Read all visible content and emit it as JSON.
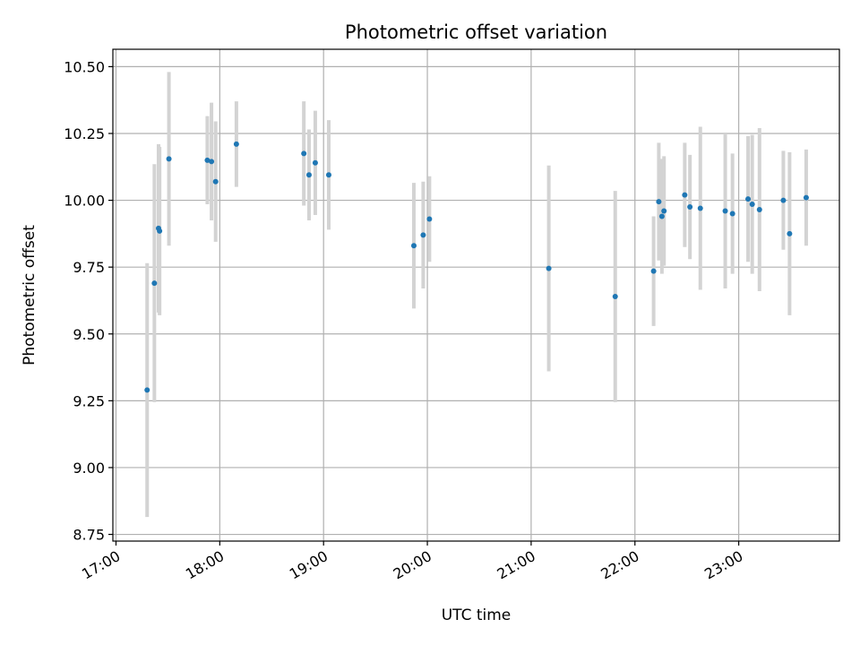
{
  "chart_data": {
    "type": "scatter",
    "title": "Photometric offset variation",
    "xlabel": "UTC time",
    "ylabel": "Photometric offset",
    "xlim_hours": [
      16.97,
      23.97
    ],
    "ylim": [
      8.725,
      10.565
    ],
    "grid": true,
    "x_ticks": [
      {
        "hour": 17,
        "label": "17:00"
      },
      {
        "hour": 18,
        "label": "18:00"
      },
      {
        "hour": 19,
        "label": "19:00"
      },
      {
        "hour": 20,
        "label": "20:00"
      },
      {
        "hour": 21,
        "label": "21:00"
      },
      {
        "hour": 22,
        "label": "22:00"
      },
      {
        "hour": 23,
        "label": "23:00"
      }
    ],
    "y_ticks": [
      {
        "value": 8.75,
        "label": "8.75"
      },
      {
        "value": 9.0,
        "label": "9.00"
      },
      {
        "value": 9.25,
        "label": "9.25"
      },
      {
        "value": 9.5,
        "label": "9.50"
      },
      {
        "value": 9.75,
        "label": "9.75"
      },
      {
        "value": 10.0,
        "label": "10.00"
      },
      {
        "value": 10.25,
        "label": "10.25"
      },
      {
        "value": 10.5,
        "label": "10.50"
      }
    ],
    "series": [
      {
        "name": "offset",
        "color": "#1f77b4",
        "error_color": "#d3d3d3",
        "points": [
          {
            "t": 17.3,
            "y": 9.29,
            "err": 0.475
          },
          {
            "t": 17.37,
            "y": 9.69,
            "err": 0.445
          },
          {
            "t": 17.41,
            "y": 9.895,
            "err": 0.315
          },
          {
            "t": 17.42,
            "y": 9.885,
            "err": 0.315
          },
          {
            "t": 17.51,
            "y": 10.155,
            "err": 0.325
          },
          {
            "t": 17.88,
            "y": 10.15,
            "err": 0.165
          },
          {
            "t": 17.92,
            "y": 10.145,
            "err": 0.22
          },
          {
            "t": 17.96,
            "y": 10.07,
            "err": 0.225
          },
          {
            "t": 18.16,
            "y": 10.21,
            "err": 0.16
          },
          {
            "t": 18.81,
            "y": 10.175,
            "err": 0.195
          },
          {
            "t": 18.86,
            "y": 10.095,
            "err": 0.17
          },
          {
            "t": 18.92,
            "y": 10.14,
            "err": 0.195
          },
          {
            "t": 19.05,
            "y": 10.095,
            "err": 0.205
          },
          {
            "t": 19.87,
            "y": 9.83,
            "err": 0.235
          },
          {
            "t": 19.96,
            "y": 9.87,
            "err": 0.2
          },
          {
            "t": 20.02,
            "y": 9.93,
            "err": 0.16
          },
          {
            "t": 21.17,
            "y": 9.745,
            "err": 0.385
          },
          {
            "t": 21.81,
            "y": 9.64,
            "err": 0.395
          },
          {
            "t": 22.18,
            "y": 9.735,
            "err": 0.205
          },
          {
            "t": 22.23,
            "y": 9.995,
            "err": 0.22
          },
          {
            "t": 22.26,
            "y": 9.94,
            "err": 0.215
          },
          {
            "t": 22.28,
            "y": 9.96,
            "err": 0.205
          },
          {
            "t": 22.48,
            "y": 10.02,
            "err": 0.195
          },
          {
            "t": 22.53,
            "y": 9.975,
            "err": 0.195
          },
          {
            "t": 22.63,
            "y": 9.97,
            "err": 0.305
          },
          {
            "t": 22.87,
            "y": 9.96,
            "err": 0.29
          },
          {
            "t": 22.94,
            "y": 9.95,
            "err": 0.225
          },
          {
            "t": 23.09,
            "y": 10.005,
            "err": 0.235
          },
          {
            "t": 23.13,
            "y": 9.985,
            "err": 0.26
          },
          {
            "t": 23.2,
            "y": 9.965,
            "err": 0.305
          },
          {
            "t": 23.43,
            "y": 10.0,
            "err": 0.185
          },
          {
            "t": 23.49,
            "y": 9.875,
            "err": 0.305
          },
          {
            "t": 23.65,
            "y": 10.01,
            "err": 0.18
          }
        ]
      }
    ]
  }
}
